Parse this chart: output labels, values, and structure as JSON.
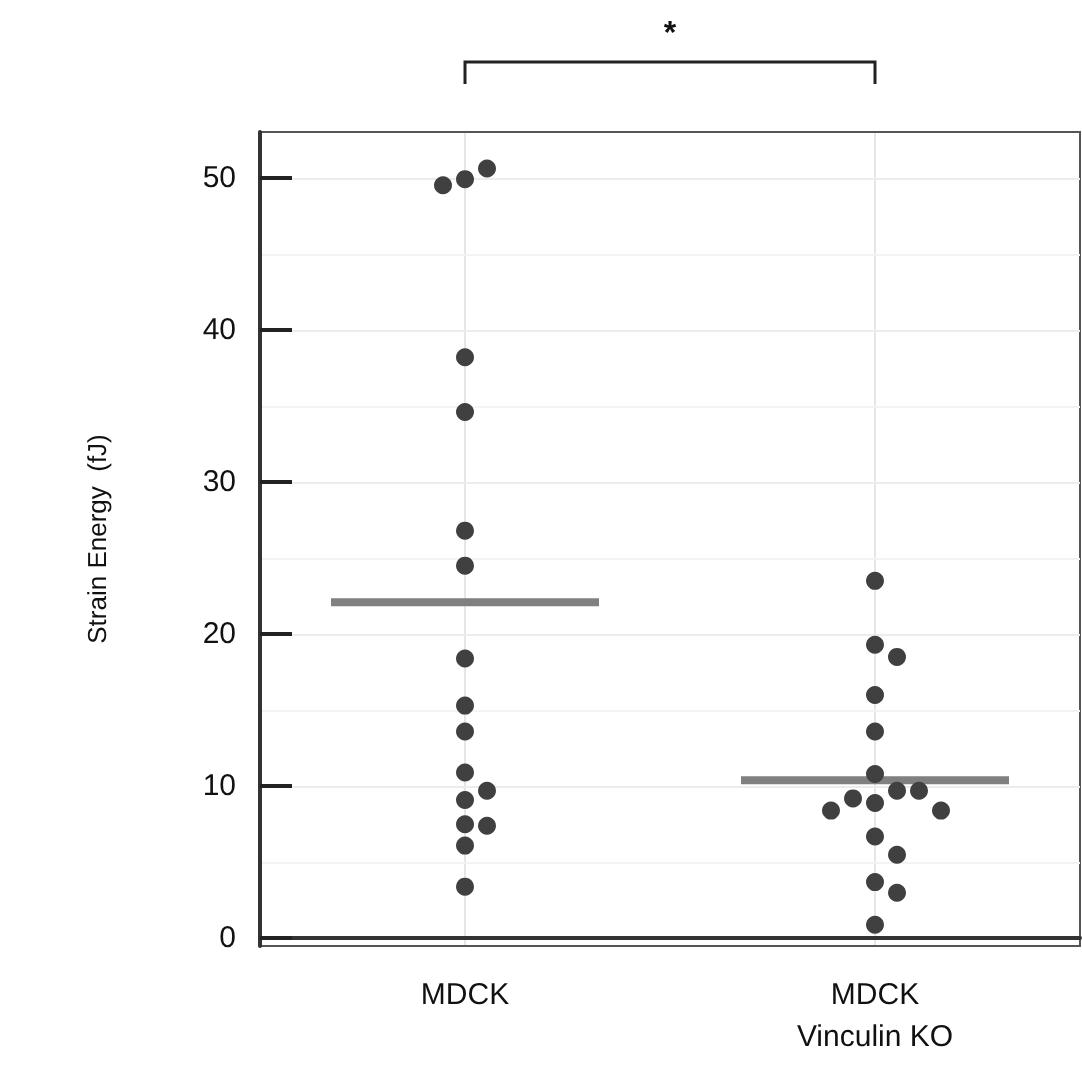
{
  "chart_data": {
    "type": "scatter",
    "ylabel": "Strain Energy  (fJ)",
    "categories": [
      "MDCK",
      "MDCK\nVinculin KO"
    ],
    "ylim": [
      -0.5,
      53
    ],
    "yticks": [
      0,
      10,
      20,
      30,
      40,
      50
    ],
    "grid": true,
    "marker": "circle",
    "annotations": [
      "*"
    ],
    "series": [
      {
        "color": "#404040",
        "x": [
          "MDCK",
          "MDCK",
          "MDCK",
          "MDCK",
          "MDCK",
          "MDCK",
          "MDCK",
          "MDCK",
          "MDCK",
          "MDCK",
          "MDCK",
          "MDCK",
          "MDCK",
          "MDCK",
          "MDCK",
          "MDCK",
          "MDCK"
        ],
        "values": [
          49.9,
          50.6,
          49.5,
          38.2,
          34.6,
          26.8,
          24.5,
          18.4,
          15.3,
          13.6,
          10.9,
          9.7,
          9.1,
          7.5,
          7.4,
          6.1,
          3.4
        ]
      },
      {
        "color": "#404040",
        "x": [
          "MDCK\nVinculin KO",
          "MDCK\nVinculin KO",
          "MDCK\nVinculin KO",
          "MDCK\nVinculin KO",
          "MDCK\nVinculin KO",
          "MDCK\nVinculin KO",
          "MDCK\nVinculin KO",
          "MDCK\nVinculin KO",
          "MDCK\nVinculin KO",
          "MDCK\nVinculin KO",
          "MDCK\nVinculin KO",
          "MDCK\nVinculin KO",
          "MDCK\nVinculin KO",
          "MDCK\nVinculin KO",
          "MDCK\nVinculin KO",
          "MDCK\nVinculin KO",
          "MDCK\nVinculin KO"
        ],
        "values": [
          23.5,
          19.3,
          18.5,
          16.0,
          13.6,
          10.8,
          9.7,
          8.9,
          9.2,
          9.7,
          8.4,
          8.4,
          6.7,
          5.5,
          3.7,
          3.0,
          0.9
        ]
      },
      {
        "type": "box",
        "color": "#808080",
        "boxes": [
          {
            "low": 22.1,
            "q1": 22.1,
            "median": 22.1,
            "q3": 22.1,
            "high": 22.1
          },
          {
            "low": 10.4,
            "q1": 10.4,
            "median": 10.4,
            "q3": 10.4,
            "high": 10.4
          }
        ]
      }
    ]
  }
}
